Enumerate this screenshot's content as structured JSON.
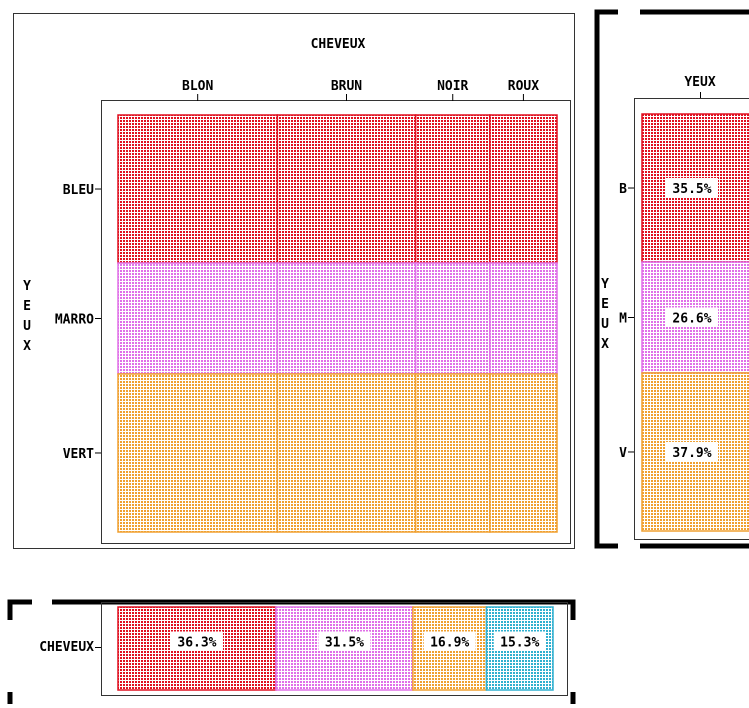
{
  "colors": {
    "red": "#e01020",
    "pink": "#e070e8",
    "orange": "#f0a030",
    "cyan": "#30b0d0"
  },
  "chart_data": [
    {
      "type": "mosaic",
      "title": "CHEVEUX",
      "xlabel": "CHEVEUX",
      "ylabel": "YEUX",
      "x_categories": [
        "BLON",
        "BRUN",
        "NOIR",
        "ROUX"
      ],
      "x_shares": [
        0.363,
        0.315,
        0.169,
        0.153
      ],
      "y_categories": [
        "BLEU",
        "MARRO",
        "VERT"
      ],
      "y_shares": [
        0.355,
        0.266,
        0.379
      ],
      "y_colors": [
        "red",
        "pink",
        "orange"
      ]
    },
    {
      "type": "bar",
      "orientation": "vertical-stacked",
      "title": "YEUX",
      "ylabel": "YEUX",
      "categories": [
        "B",
        "M",
        "V"
      ],
      "values": [
        35.5,
        26.6,
        37.9
      ],
      "value_labels": [
        "35.5%",
        "26.6%",
        "37.9%"
      ],
      "colors": [
        "red",
        "pink",
        "orange"
      ]
    },
    {
      "type": "bar",
      "orientation": "horizontal-stacked",
      "ylabel": "CHEVEUX",
      "values": [
        36.3,
        31.5,
        16.9,
        15.3
      ],
      "value_labels": [
        "36.3%",
        "31.5%",
        "16.9%",
        "15.3%"
      ],
      "colors": [
        "red",
        "pink",
        "orange",
        "cyan"
      ]
    }
  ]
}
